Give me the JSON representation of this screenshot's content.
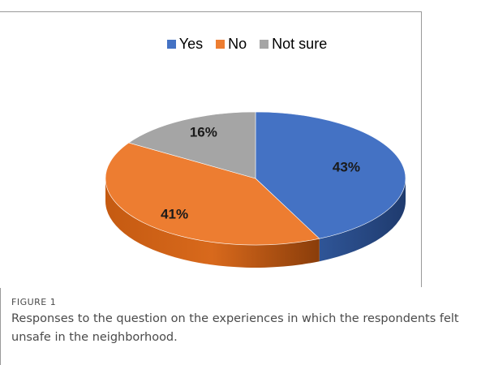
{
  "chart_data": {
    "type": "pie",
    "style": "3d",
    "categories": [
      "Yes",
      "No",
      "Not sure"
    ],
    "values": [
      43,
      41,
      16
    ],
    "labels": [
      "43%",
      "41%",
      "16%"
    ],
    "colors": [
      "#4472C4",
      "#ED7D31",
      "#A5A5A5"
    ],
    "legend_position": "top",
    "title": ""
  },
  "caption": {
    "label": "FIGURE 1",
    "text": "Responses to the question on the experiences in which the respondents felt unsafe in the neighborhood."
  }
}
